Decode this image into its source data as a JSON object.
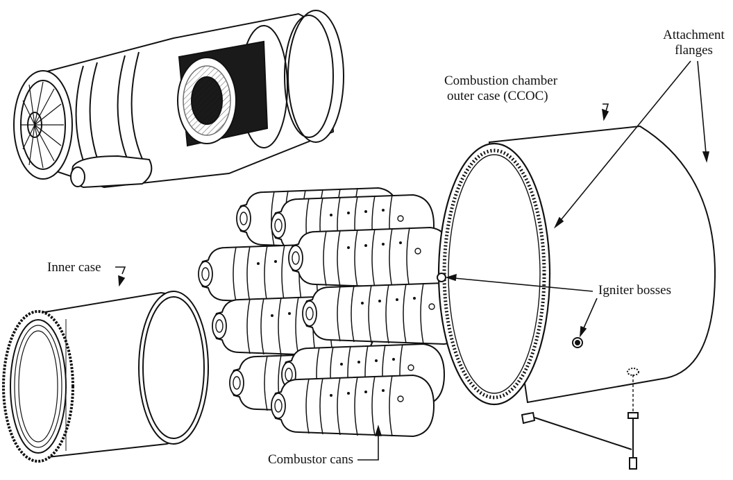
{
  "labels": {
    "attachment_flanges_line1": "Attachment",
    "attachment_flanges_line2": "flanges",
    "ccoc_line1": "Combustion chamber",
    "ccoc_line2": "outer case (CCOC)",
    "inner_case": "Inner case",
    "igniter_bosses": "Igniter bosses",
    "combustor_cans": "Combustor cans"
  },
  "colors": {
    "ink": "#111111",
    "paper": "#ffffff",
    "shade": "#1a1a1a"
  }
}
